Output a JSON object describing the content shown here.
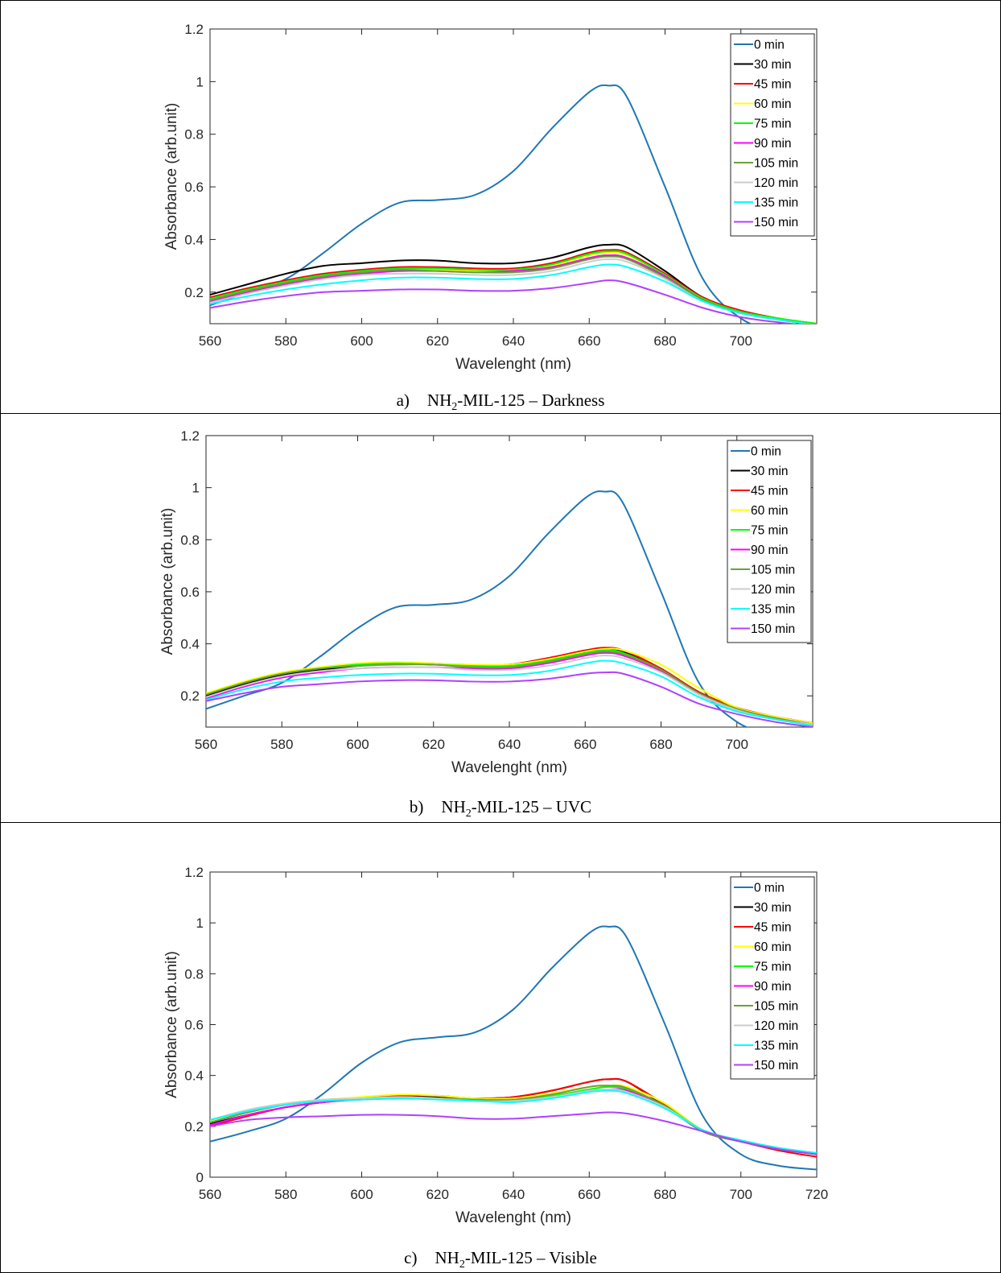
{
  "captions": [
    {
      "letter": "a)",
      "pre": "NH",
      "sub": "2",
      "post": "-MIL-125 – Darkness"
    },
    {
      "letter": "b)",
      "pre": "NH",
      "sub": "2",
      "post": "-MIL-125 – UVC"
    },
    {
      "letter": "c)",
      "pre": "NH",
      "sub": "2",
      "post": "-MIL-125 – Visible"
    }
  ],
  "series_colors": {
    "0 min": "#1f77b4",
    "30 min": "#000000",
    "45 min": "#ff0000",
    "60 min": "#ffff00",
    "75 min": "#00ff00",
    "90 min": "#ff00ff",
    "105 min": "#6ba03c",
    "120 min": "#cccccc",
    "135 min": "#00ffff",
    "150 min": "#b040ff"
  },
  "chart_data": [
    {
      "type": "line",
      "xlabel": "Wavelenght (nm)",
      "ylabel": "Absorbance (arb.unit)",
      "xlim": [
        560,
        720
      ],
      "ylim": [
        0.08,
        1.2
      ],
      "xticks": [
        560,
        580,
        600,
        620,
        640,
        660,
        680,
        700
      ],
      "yticks": [
        0.2,
        0.4,
        0.6,
        0.8,
        1,
        1.2
      ],
      "legend_position": "top-right",
      "x": [
        560,
        570,
        580,
        590,
        600,
        610,
        620,
        630,
        640,
        650,
        660,
        665,
        670,
        680,
        690,
        700,
        710,
        720
      ],
      "series": [
        {
          "name": "0 min",
          "values": [
            0.15,
            0.2,
            0.25,
            0.35,
            0.46,
            0.54,
            0.55,
            0.57,
            0.66,
            0.82,
            0.96,
            0.985,
            0.94,
            0.6,
            0.25,
            0.1,
            0.05,
            0.03
          ]
        },
        {
          "name": "30 min",
          "values": [
            0.19,
            0.23,
            0.27,
            0.3,
            0.31,
            0.32,
            0.32,
            0.31,
            0.31,
            0.33,
            0.37,
            0.38,
            0.37,
            0.28,
            0.18,
            0.13,
            0.1,
            0.08
          ]
        },
        {
          "name": "45 min",
          "values": [
            0.18,
            0.215,
            0.245,
            0.27,
            0.285,
            0.295,
            0.295,
            0.29,
            0.29,
            0.31,
            0.35,
            0.36,
            0.35,
            0.27,
            0.18,
            0.13,
            0.1,
            0.08
          ]
        },
        {
          "name": "60 min",
          "values": [
            0.17,
            0.205,
            0.235,
            0.26,
            0.275,
            0.285,
            0.285,
            0.28,
            0.285,
            0.3,
            0.34,
            0.35,
            0.34,
            0.265,
            0.175,
            0.125,
            0.1,
            0.08
          ]
        },
        {
          "name": "75 min",
          "values": [
            0.175,
            0.21,
            0.24,
            0.265,
            0.28,
            0.29,
            0.29,
            0.285,
            0.285,
            0.305,
            0.345,
            0.355,
            0.345,
            0.265,
            0.175,
            0.125,
            0.1,
            0.08
          ]
        },
        {
          "name": "90 min",
          "values": [
            0.165,
            0.2,
            0.23,
            0.255,
            0.27,
            0.28,
            0.28,
            0.275,
            0.28,
            0.295,
            0.33,
            0.34,
            0.33,
            0.26,
            0.17,
            0.12,
            0.095,
            0.075
          ]
        },
        {
          "name": "105 min",
          "values": [
            0.17,
            0.205,
            0.235,
            0.26,
            0.275,
            0.285,
            0.28,
            0.275,
            0.275,
            0.29,
            0.325,
            0.335,
            0.325,
            0.255,
            0.17,
            0.12,
            0.095,
            0.075
          ]
        },
        {
          "name": "120 min",
          "values": [
            0.16,
            0.195,
            0.225,
            0.25,
            0.265,
            0.27,
            0.27,
            0.265,
            0.265,
            0.28,
            0.315,
            0.325,
            0.315,
            0.25,
            0.165,
            0.12,
            0.095,
            0.075
          ]
        },
        {
          "name": "135 min",
          "values": [
            0.155,
            0.185,
            0.21,
            0.23,
            0.245,
            0.255,
            0.255,
            0.25,
            0.25,
            0.265,
            0.295,
            0.305,
            0.295,
            0.24,
            0.165,
            0.12,
            0.095,
            0.075
          ]
        },
        {
          "name": "150 min",
          "values": [
            0.14,
            0.165,
            0.185,
            0.2,
            0.205,
            0.21,
            0.21,
            0.205,
            0.205,
            0.215,
            0.235,
            0.245,
            0.235,
            0.19,
            0.14,
            0.105,
            0.085,
            0.07
          ]
        }
      ]
    },
    {
      "type": "line",
      "xlabel": "Wavelenght (nm)",
      "ylabel": "Absorbance (arb.unit)",
      "xlim": [
        560,
        720
      ],
      "ylim": [
        0.08,
        1.2
      ],
      "xticks": [
        560,
        580,
        600,
        620,
        640,
        660,
        680,
        700
      ],
      "yticks": [
        0.2,
        0.4,
        0.6,
        0.8,
        1,
        1.2
      ],
      "legend_position": "top-right",
      "x": [
        560,
        570,
        580,
        590,
        600,
        610,
        620,
        630,
        640,
        650,
        660,
        665,
        670,
        680,
        690,
        700,
        710,
        720
      ],
      "series": [
        {
          "name": "0 min",
          "values": [
            0.15,
            0.2,
            0.25,
            0.35,
            0.46,
            0.54,
            0.55,
            0.57,
            0.66,
            0.82,
            0.96,
            0.985,
            0.94,
            0.6,
            0.25,
            0.1,
            0.05,
            0.03
          ]
        },
        {
          "name": "30 min",
          "values": [
            0.2,
            0.245,
            0.28,
            0.3,
            0.315,
            0.325,
            0.32,
            0.315,
            0.32,
            0.34,
            0.37,
            0.38,
            0.37,
            0.3,
            0.21,
            0.15,
            0.12,
            0.095
          ]
        },
        {
          "name": "45 min",
          "values": [
            0.205,
            0.25,
            0.285,
            0.305,
            0.32,
            0.325,
            0.325,
            0.315,
            0.32,
            0.345,
            0.375,
            0.385,
            0.375,
            0.305,
            0.215,
            0.155,
            0.12,
            0.095
          ]
        },
        {
          "name": "60 min",
          "values": [
            0.21,
            0.255,
            0.29,
            0.31,
            0.325,
            0.33,
            0.325,
            0.32,
            0.32,
            0.34,
            0.37,
            0.38,
            0.375,
            0.32,
            0.23,
            0.155,
            0.12,
            0.095
          ]
        },
        {
          "name": "75 min",
          "values": [
            0.205,
            0.25,
            0.285,
            0.305,
            0.32,
            0.325,
            0.32,
            0.315,
            0.315,
            0.335,
            0.365,
            0.375,
            0.365,
            0.3,
            0.21,
            0.15,
            0.115,
            0.09
          ]
        },
        {
          "name": "90 min",
          "values": [
            0.19,
            0.235,
            0.27,
            0.29,
            0.305,
            0.31,
            0.31,
            0.305,
            0.305,
            0.325,
            0.355,
            0.365,
            0.355,
            0.295,
            0.205,
            0.145,
            0.115,
            0.09
          ]
        },
        {
          "name": "105 min",
          "values": [
            0.205,
            0.25,
            0.285,
            0.305,
            0.315,
            0.32,
            0.32,
            0.31,
            0.31,
            0.33,
            0.36,
            0.37,
            0.36,
            0.3,
            0.21,
            0.15,
            0.115,
            0.09
          ]
        },
        {
          "name": "120 min",
          "values": [
            0.195,
            0.24,
            0.275,
            0.295,
            0.305,
            0.31,
            0.31,
            0.3,
            0.3,
            0.315,
            0.345,
            0.355,
            0.345,
            0.29,
            0.205,
            0.145,
            0.11,
            0.09
          ]
        },
        {
          "name": "135 min",
          "values": [
            0.185,
            0.225,
            0.255,
            0.27,
            0.28,
            0.285,
            0.285,
            0.28,
            0.28,
            0.295,
            0.325,
            0.335,
            0.325,
            0.275,
            0.195,
            0.14,
            0.11,
            0.085
          ]
        },
        {
          "name": "150 min",
          "values": [
            0.18,
            0.21,
            0.235,
            0.245,
            0.255,
            0.26,
            0.26,
            0.255,
            0.255,
            0.265,
            0.285,
            0.29,
            0.285,
            0.235,
            0.17,
            0.13,
            0.1,
            0.08
          ]
        }
      ]
    },
    {
      "type": "line",
      "xlabel": "Wavelenght (nm)",
      "ylabel": "Absorbance (arb.unit)",
      "xlim": [
        560,
        720
      ],
      "ylim": [
        0,
        1.2
      ],
      "xticks": [
        560,
        580,
        600,
        620,
        640,
        660,
        680,
        700,
        720
      ],
      "yticks": [
        0,
        0.2,
        0.4,
        0.6,
        0.8,
        1,
        1.2
      ],
      "legend_position": "top-right",
      "x": [
        560,
        570,
        580,
        590,
        600,
        610,
        620,
        630,
        640,
        650,
        660,
        665,
        670,
        680,
        690,
        700,
        710,
        720
      ],
      "series": [
        {
          "name": "0 min",
          "values": [
            0.14,
            0.18,
            0.23,
            0.33,
            0.45,
            0.53,
            0.55,
            0.57,
            0.66,
            0.82,
            0.96,
            0.985,
            0.94,
            0.6,
            0.24,
            0.09,
            0.045,
            0.03
          ]
        },
        {
          "name": "30 min",
          "values": [
            0.21,
            0.245,
            0.275,
            0.295,
            0.31,
            0.32,
            0.315,
            0.31,
            0.315,
            0.34,
            0.375,
            0.385,
            0.375,
            0.28,
            0.18,
            0.14,
            0.11,
            0.09
          ]
        },
        {
          "name": "45 min",
          "values": [
            0.2,
            0.24,
            0.275,
            0.295,
            0.31,
            0.32,
            0.32,
            0.31,
            0.315,
            0.34,
            0.375,
            0.385,
            0.375,
            0.285,
            0.18,
            0.14,
            0.105,
            0.08
          ]
        },
        {
          "name": "60 min",
          "values": [
            0.22,
            0.26,
            0.29,
            0.305,
            0.315,
            0.325,
            0.32,
            0.31,
            0.31,
            0.33,
            0.355,
            0.36,
            0.355,
            0.29,
            0.185,
            0.145,
            0.115,
            0.095
          ]
        },
        {
          "name": "75 min",
          "values": [
            0.215,
            0.255,
            0.285,
            0.3,
            0.31,
            0.315,
            0.31,
            0.305,
            0.305,
            0.32,
            0.345,
            0.355,
            0.345,
            0.28,
            0.185,
            0.145,
            0.115,
            0.095
          ]
        },
        {
          "name": "90 min",
          "values": [
            0.205,
            0.245,
            0.275,
            0.295,
            0.305,
            0.31,
            0.31,
            0.3,
            0.3,
            0.315,
            0.34,
            0.345,
            0.34,
            0.275,
            0.18,
            0.14,
            0.11,
            0.09
          ]
        },
        {
          "name": "105 min",
          "values": [
            0.215,
            0.255,
            0.285,
            0.3,
            0.31,
            0.315,
            0.31,
            0.305,
            0.305,
            0.325,
            0.355,
            0.36,
            0.35,
            0.28,
            0.18,
            0.14,
            0.11,
            0.09
          ]
        },
        {
          "name": "120 min",
          "values": [
            0.225,
            0.265,
            0.29,
            0.305,
            0.31,
            0.315,
            0.31,
            0.3,
            0.3,
            0.315,
            0.34,
            0.345,
            0.335,
            0.275,
            0.185,
            0.145,
            0.115,
            0.095
          ]
        },
        {
          "name": "135 min",
          "values": [
            0.225,
            0.26,
            0.285,
            0.3,
            0.305,
            0.31,
            0.305,
            0.3,
            0.295,
            0.31,
            0.335,
            0.34,
            0.33,
            0.27,
            0.185,
            0.145,
            0.115,
            0.095
          ]
        },
        {
          "name": "150 min",
          "values": [
            0.2,
            0.225,
            0.235,
            0.24,
            0.245,
            0.245,
            0.24,
            0.23,
            0.23,
            0.24,
            0.25,
            0.255,
            0.25,
            0.22,
            0.18,
            0.14,
            0.11,
            0.09
          ]
        }
      ]
    }
  ]
}
